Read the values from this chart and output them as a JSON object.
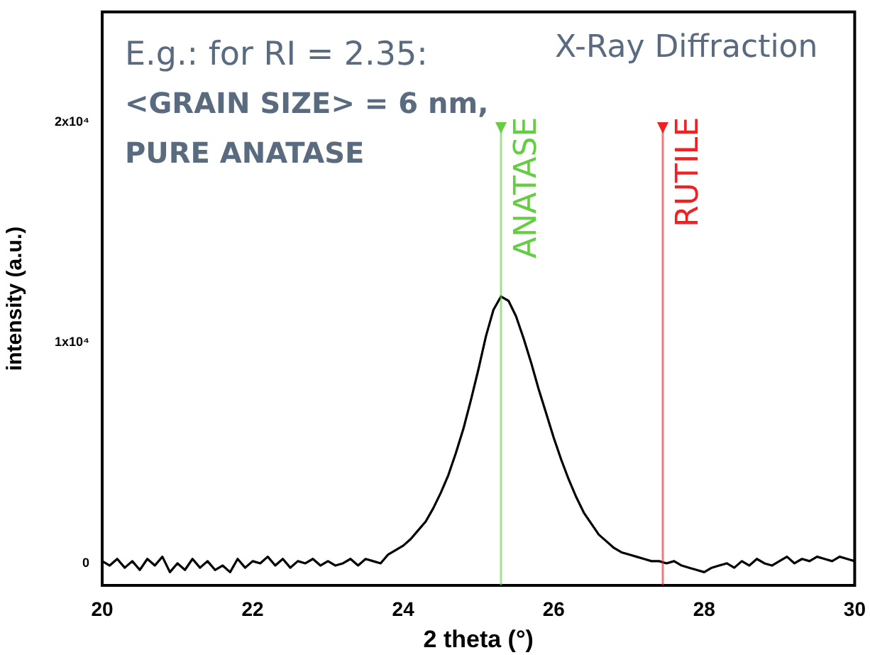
{
  "chart_data": {
    "type": "line",
    "title": "X-Ray Diffraction",
    "xlabel": "2 theta (°)",
    "ylabel": "intensity (a.u.)",
    "annotations": [
      "E.g.: for RI = 2.35:",
      "<GRAIN SIZE> = 6 nm,",
      "PURE ANATASE"
    ],
    "xlim": [
      20,
      30
    ],
    "xticks": [
      20,
      22,
      24,
      26,
      28,
      30
    ],
    "ylim": [
      -1000,
      25000
    ],
    "yticks": [
      {
        "value": 0,
        "label": "0"
      },
      {
        "value": 10000,
        "label": "1x10⁴"
      },
      {
        "value": 20000,
        "label": "2x10⁴"
      }
    ],
    "grid": false,
    "legend": false,
    "marker": "none",
    "line_style": "solid",
    "ref_lines": [
      {
        "axis": "x",
        "value": 25.3,
        "label": "ANATASE",
        "color": "#66cc44"
      },
      {
        "axis": "x",
        "value": 27.45,
        "label": "RUTILE",
        "color": "#ee2222"
      }
    ],
    "series": [
      {
        "color": "#000000",
        "x": [
          20,
          20.1,
          20.2,
          20.3,
          20.4,
          20.5,
          20.6,
          20.7,
          20.8,
          20.9,
          21,
          21.1,
          21.2,
          21.3,
          21.4,
          21.5,
          21.6,
          21.7,
          21.8,
          21.9,
          22,
          22.1,
          22.2,
          22.3,
          22.4,
          22.5,
          22.6,
          22.7,
          22.8,
          22.9,
          23,
          23.1,
          23.2,
          23.3,
          23.4,
          23.5,
          23.6,
          23.7,
          23.8,
          23.9,
          24,
          24.1,
          24.2,
          24.3,
          24.4,
          24.5,
          24.6,
          24.7,
          24.8,
          24.9,
          25,
          25.1,
          25.2,
          25.3,
          25.4,
          25.5,
          25.6,
          25.7,
          25.8,
          25.9,
          26,
          26.1,
          26.2,
          26.3,
          26.4,
          26.5,
          26.6,
          26.7,
          26.8,
          26.9,
          27,
          27.1,
          27.2,
          27.3,
          27.4,
          27.5,
          27.6,
          27.7,
          27.8,
          27.9,
          28,
          28.1,
          28.2,
          28.3,
          28.4,
          28.5,
          28.6,
          28.7,
          28.8,
          28.9,
          29,
          29.1,
          29.2,
          29.3,
          29.4,
          29.5,
          29.6,
          29.7,
          29.8,
          29.9,
          30
        ],
        "values": [
          100,
          -100,
          200,
          -200,
          100,
          -300,
          200,
          -100,
          300,
          -400,
          0,
          -300,
          200,
          -200,
          100,
          -300,
          -100,
          -400,
          200,
          -200,
          100,
          0,
          300,
          -100,
          200,
          -200,
          100,
          0,
          200,
          -100,
          100,
          -100,
          0,
          200,
          -100,
          200,
          100,
          0,
          400,
          600,
          800,
          1100,
          1500,
          1900,
          2500,
          3200,
          4000,
          5000,
          6100,
          7400,
          8800,
          10300,
          11500,
          12100,
          11900,
          11200,
          10200,
          9100,
          7900,
          6800,
          5700,
          4700,
          3800,
          3000,
          2300,
          1800,
          1300,
          1000,
          700,
          500,
          400,
          300,
          200,
          100,
          100,
          0,
          100,
          -100,
          -200,
          -300,
          -400,
          -200,
          -100,
          0,
          -200,
          100,
          -100,
          200,
          0,
          -100,
          100,
          300,
          0,
          200,
          100,
          300,
          200,
          100,
          300,
          200,
          100
        ]
      }
    ]
  }
}
